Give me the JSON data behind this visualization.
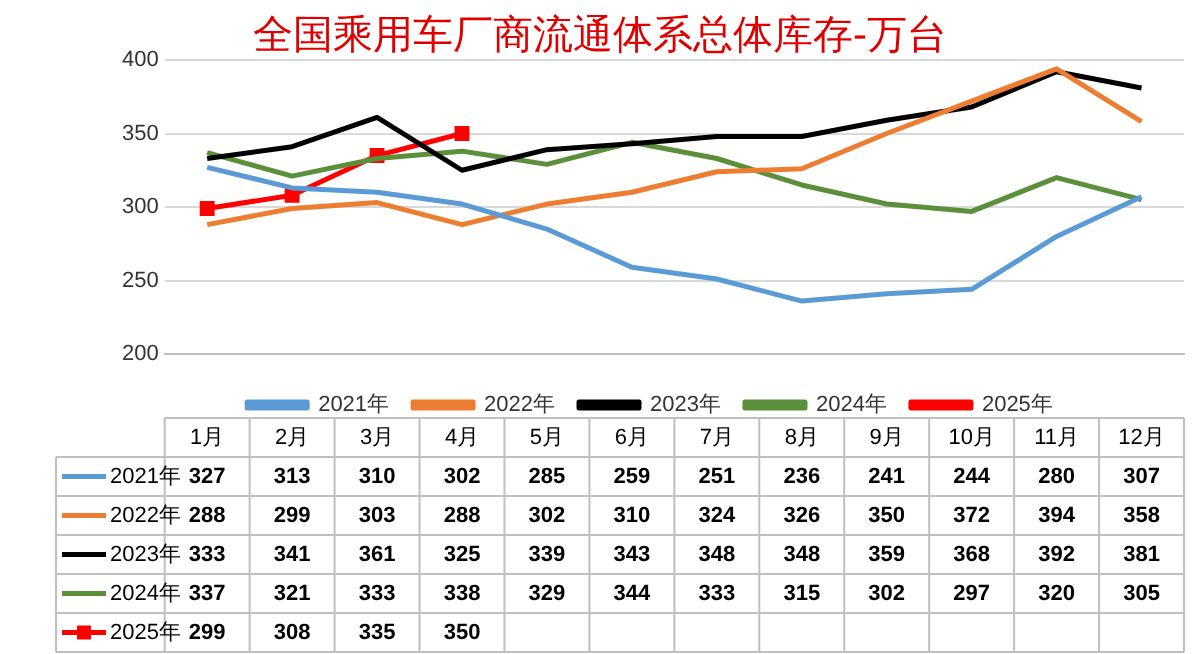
{
  "chart_data": {
    "type": "line",
    "title": "全国乘用车厂商流通体系总体库存-万台",
    "categories": [
      "1月",
      "2月",
      "3月",
      "4月",
      "5月",
      "6月",
      "7月",
      "8月",
      "9月",
      "10月",
      "11月",
      "12月"
    ],
    "series": [
      {
        "name": "2021年",
        "color": "#5b9bd5",
        "values": [
          327,
          313,
          310,
          302,
          285,
          259,
          251,
          236,
          241,
          244,
          280,
          307
        ]
      },
      {
        "name": "2022年",
        "color": "#ed7d31",
        "values": [
          288,
          299,
          303,
          288,
          302,
          310,
          324,
          326,
          350,
          372,
          394,
          358
        ]
      },
      {
        "name": "2023年",
        "color": "#000000",
        "values": [
          333,
          341,
          361,
          325,
          339,
          343,
          348,
          348,
          359,
          368,
          392,
          381
        ]
      },
      {
        "name": "2024年",
        "color": "#5b8f3a",
        "values": [
          337,
          321,
          333,
          338,
          329,
          344,
          333,
          315,
          302,
          297,
          320,
          305
        ]
      },
      {
        "name": "2025年",
        "color": "#ff0000",
        "marker": "square",
        "values": [
          299,
          308,
          335,
          350,
          null,
          null,
          null,
          null,
          null,
          null,
          null,
          null
        ]
      }
    ],
    "ylim": [
      200,
      400
    ],
    "yticks": [
      200,
      250,
      300,
      350,
      400
    ],
    "grid": "y",
    "legend": "bottom",
    "marker": "none",
    "line_style": "solid",
    "data_labels": true
  }
}
